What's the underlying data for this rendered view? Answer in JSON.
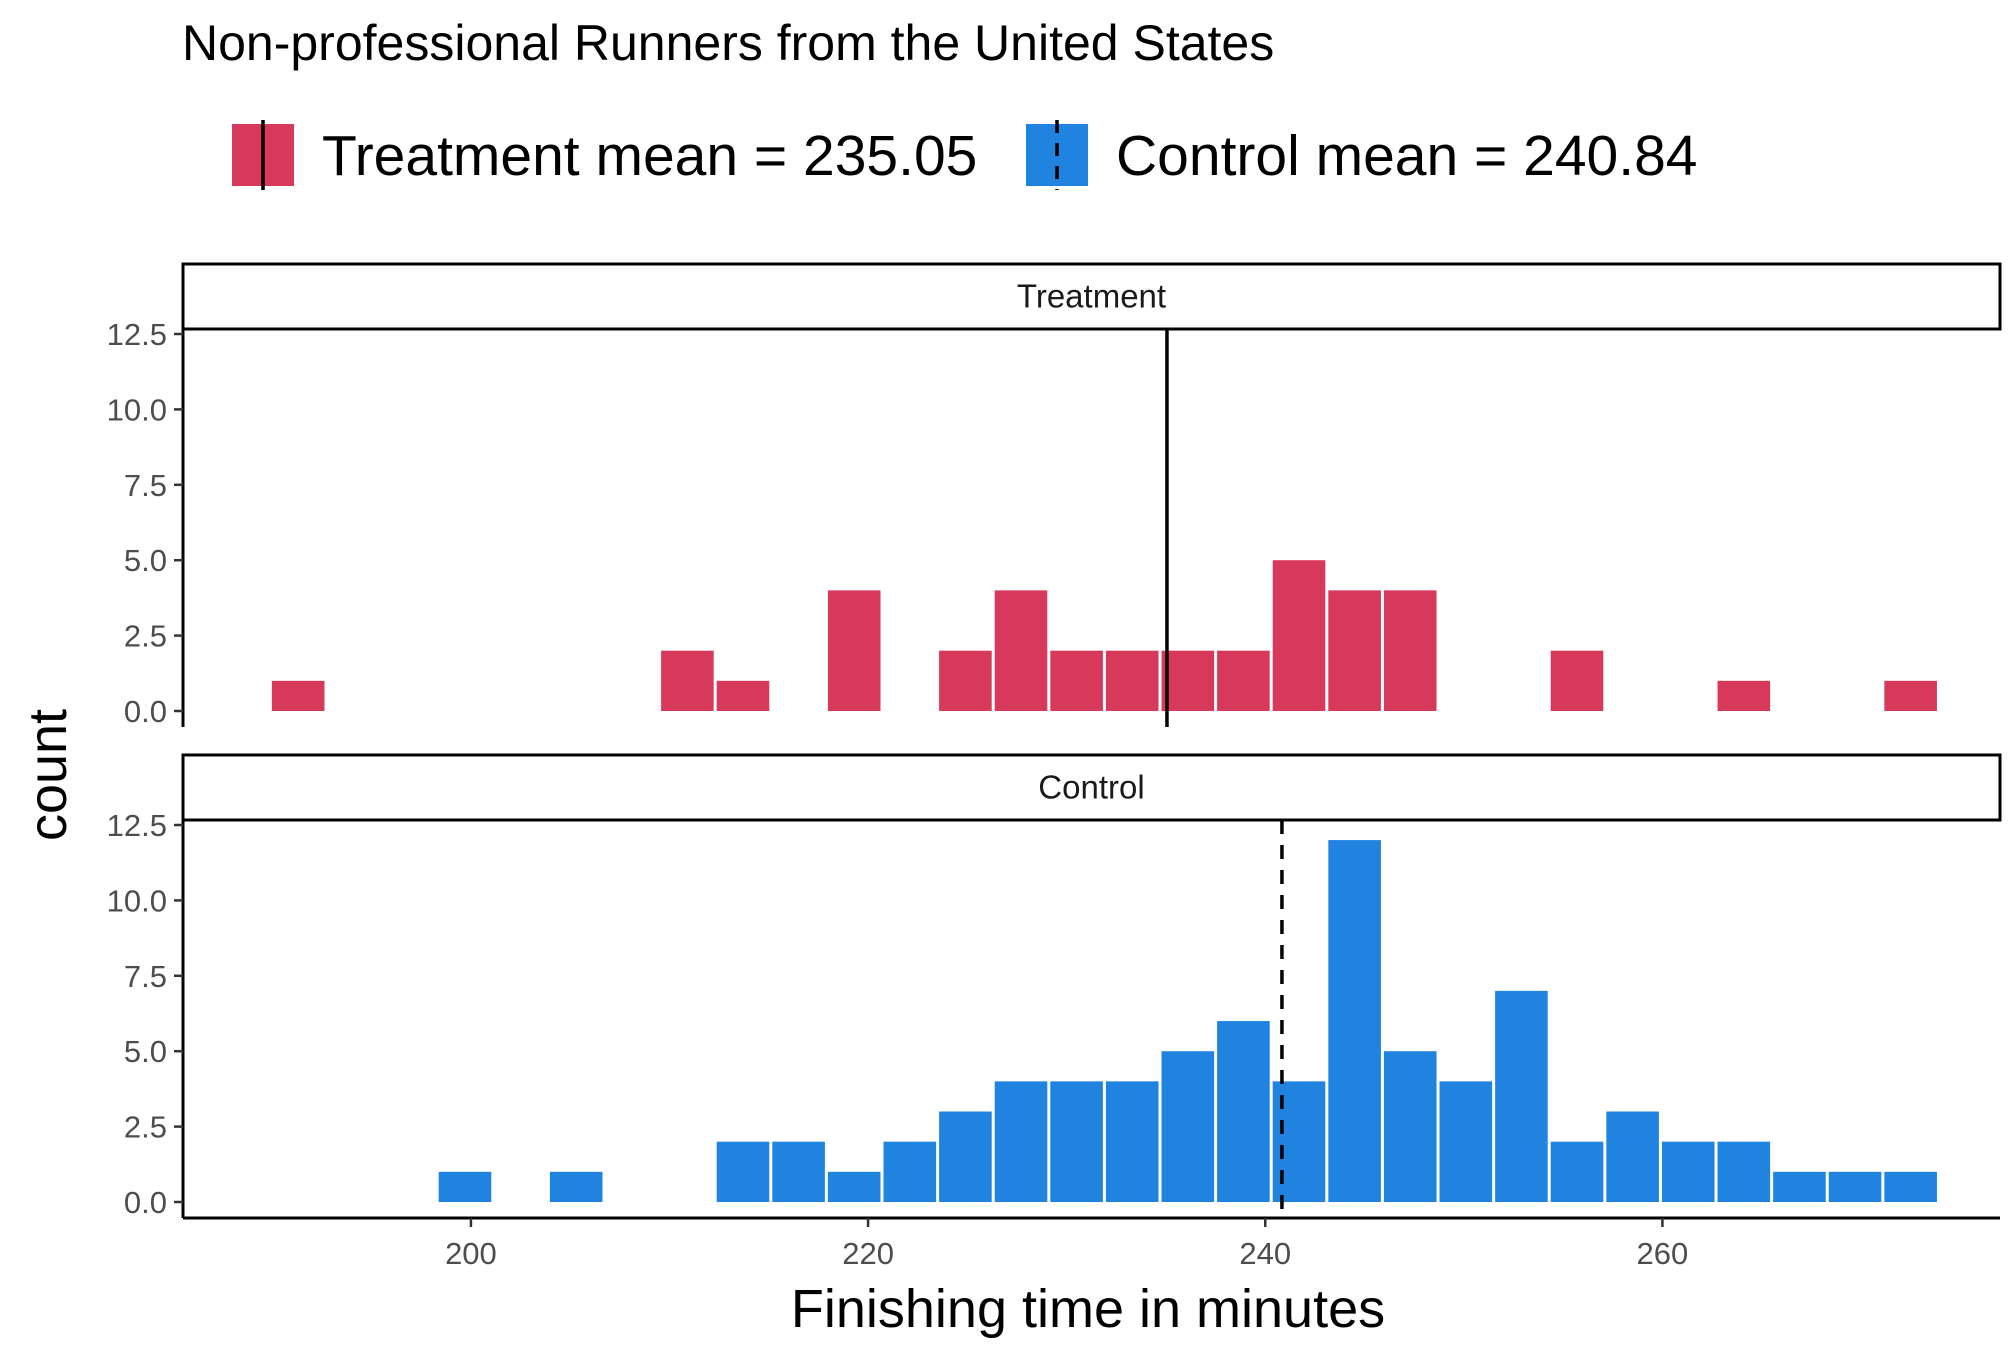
{
  "chart_data": {
    "type": "bar",
    "title": "Non-professional Runners from the United States",
    "xlabel": "Finishing time in minutes",
    "ylabel": "count",
    "xlim": [
      185.5,
      277
    ],
    "ylim": [
      -0.5,
      12.5
    ],
    "x_ticks": [
      200,
      220,
      240,
      260
    ],
    "x_tick_labels": [
      "200",
      "220",
      "240",
      "260"
    ],
    "y_ticks": [
      0,
      2.5,
      5,
      7.5,
      10,
      12.5
    ],
    "y_tick_labels": [
      "0.0",
      "2.5",
      "5.0",
      "7.5",
      "10.0",
      "12.5"
    ],
    "bin_width": 2.8,
    "grid": false,
    "legend_position": "top",
    "legend": [
      {
        "label": "Treatment mean = 235.05",
        "color": "#D6395A",
        "line": "solid"
      },
      {
        "label": "Control mean =  240.84",
        "color": "#2183E0",
        "line": "dashed"
      }
    ],
    "panels": [
      {
        "name": "Treatment",
        "color": "#D6395A",
        "mean": 235.05,
        "mean_line": "solid",
        "bins": [
          {
            "x": 191.3,
            "count": 1
          },
          {
            "x": 210.9,
            "count": 2
          },
          {
            "x": 213.7,
            "count": 1
          },
          {
            "x": 219.3,
            "count": 4
          },
          {
            "x": 224.9,
            "count": 2
          },
          {
            "x": 227.7,
            "count": 4
          },
          {
            "x": 230.5,
            "count": 2
          },
          {
            "x": 233.3,
            "count": 2
          },
          {
            "x": 236.1,
            "count": 2
          },
          {
            "x": 238.9,
            "count": 2
          },
          {
            "x": 241.7,
            "count": 5
          },
          {
            "x": 244.5,
            "count": 4
          },
          {
            "x": 247.3,
            "count": 4
          },
          {
            "x": 255.7,
            "count": 2
          },
          {
            "x": 264.1,
            "count": 1
          },
          {
            "x": 272.5,
            "count": 1
          }
        ]
      },
      {
        "name": "Control",
        "color": "#2183E0",
        "mean": 240.84,
        "mean_line": "dashed",
        "bins": [
          {
            "x": 199.7,
            "count": 1
          },
          {
            "x": 205.3,
            "count": 1
          },
          {
            "x": 213.7,
            "count": 2
          },
          {
            "x": 216.5,
            "count": 2
          },
          {
            "x": 219.3,
            "count": 1
          },
          {
            "x": 222.1,
            "count": 2
          },
          {
            "x": 224.9,
            "count": 3
          },
          {
            "x": 227.7,
            "count": 4
          },
          {
            "x": 230.5,
            "count": 4
          },
          {
            "x": 233.3,
            "count": 4
          },
          {
            "x": 236.1,
            "count": 5
          },
          {
            "x": 238.9,
            "count": 6
          },
          {
            "x": 241.7,
            "count": 4
          },
          {
            "x": 244.5,
            "count": 12
          },
          {
            "x": 247.3,
            "count": 5
          },
          {
            "x": 250.1,
            "count": 4
          },
          {
            "x": 252.9,
            "count": 7
          },
          {
            "x": 255.7,
            "count": 2
          },
          {
            "x": 258.5,
            "count": 3
          },
          {
            "x": 261.3,
            "count": 2
          },
          {
            "x": 264.1,
            "count": 2
          },
          {
            "x": 266.9,
            "count": 1
          },
          {
            "x": 269.7,
            "count": 1
          },
          {
            "x": 272.5,
            "count": 1
          }
        ]
      }
    ]
  }
}
